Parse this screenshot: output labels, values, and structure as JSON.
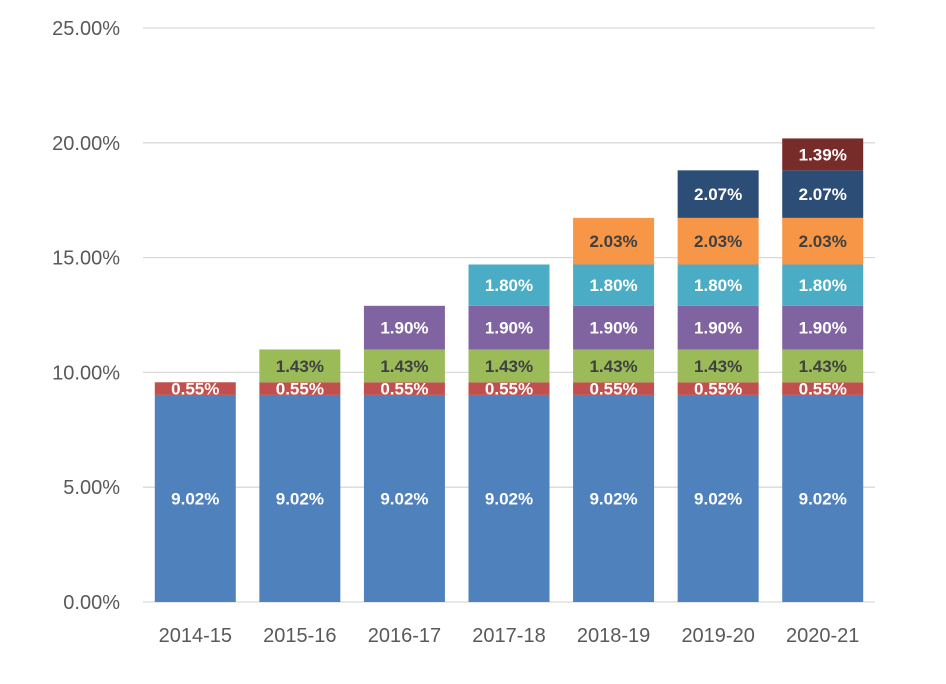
{
  "chart_data": {
    "type": "bar",
    "stacked": true,
    "categories": [
      "2014-15",
      "2015-16",
      "2016-17",
      "2017-18",
      "2018-19",
      "2019-20",
      "2020-21"
    ],
    "ylim": [
      0,
      25
    ],
    "yticks": [
      "0.00%",
      "5.00%",
      "10.00%",
      "15.00%",
      "20.00%",
      "25.00%"
    ],
    "ytick_values": [
      0,
      5,
      10,
      15,
      20,
      25
    ],
    "grid": true,
    "legend": "none",
    "title": "",
    "xlabel": "",
    "ylabel": "",
    "series": [
      {
        "color": "#4f81bd",
        "label_color": "#ffffff",
        "values": [
          9.02,
          9.02,
          9.02,
          9.02,
          9.02,
          9.02,
          9.02
        ]
      },
      {
        "color": "#c0504d",
        "label_color": "#ffffff",
        "values": [
          0.55,
          0.55,
          0.55,
          0.55,
          0.55,
          0.55,
          0.55
        ]
      },
      {
        "color": "#9bbb59",
        "label_color": "#404040",
        "values": [
          null,
          1.43,
          1.43,
          1.43,
          1.43,
          1.43,
          1.43
        ]
      },
      {
        "color": "#8064a2",
        "label_color": "#ffffff",
        "values": [
          null,
          null,
          1.9,
          1.9,
          1.9,
          1.9,
          1.9
        ]
      },
      {
        "color": "#4bacc6",
        "label_color": "#ffffff",
        "values": [
          null,
          null,
          null,
          1.8,
          1.8,
          1.8,
          1.8
        ]
      },
      {
        "color": "#f79646",
        "label_color": "#404040",
        "values": [
          null,
          null,
          null,
          null,
          2.03,
          2.03,
          2.03
        ]
      },
      {
        "color": "#2c4d75",
        "label_color": "#ffffff",
        "values": [
          null,
          null,
          null,
          null,
          null,
          2.07,
          2.07
        ]
      },
      {
        "color": "#772c2a",
        "label_color": "#ffffff",
        "values": [
          null,
          null,
          null,
          null,
          null,
          null,
          1.39
        ]
      }
    ]
  }
}
